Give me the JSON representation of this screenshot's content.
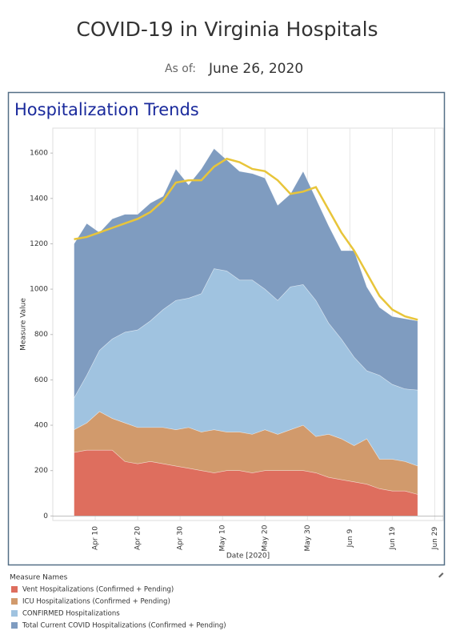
{
  "chart_data": {
    "type": "area",
    "title": "COVID-19 in Virginia Hospitals",
    "as_of_label": "As of:",
    "as_of_date": "June 26, 2020",
    "subtitle": "Hospitalization Trends",
    "ylabel": "Measure Value",
    "xlabel": "Date [2020]",
    "legend_title": "Measure Names",
    "x": [
      "2020-04-05",
      "2020-04-08",
      "2020-04-11",
      "2020-04-14",
      "2020-04-17",
      "2020-04-20",
      "2020-04-23",
      "2020-04-26",
      "2020-04-29",
      "2020-05-02",
      "2020-05-05",
      "2020-05-08",
      "2020-05-11",
      "2020-05-14",
      "2020-05-17",
      "2020-05-20",
      "2020-05-23",
      "2020-05-26",
      "2020-05-29",
      "2020-06-01",
      "2020-06-04",
      "2020-06-07",
      "2020-06-10",
      "2020-06-13",
      "2020-06-16",
      "2020-06-19",
      "2020-06-22",
      "2020-06-25"
    ],
    "series": [
      {
        "name": "Total Current COVID Hospitalizations (Confirmed + Pending)",
        "color": "#7f9cc0",
        "style": "area",
        "values": [
          1200,
          1290,
          1250,
          1310,
          1330,
          1330,
          1380,
          1410,
          1530,
          1460,
          1530,
          1620,
          1570,
          1520,
          1510,
          1490,
          1370,
          1420,
          1520,
          1400,
          1280,
          1170,
          1170,
          1010,
          920,
          880,
          870,
          860
        ]
      },
      {
        "name": "CONFIRMED Hospitalizations",
        "color": "#a0c3e0",
        "style": "area",
        "values": [
          520,
          620,
          730,
          780,
          810,
          820,
          860,
          910,
          950,
          960,
          980,
          1090,
          1080,
          1040,
          1040,
          1000,
          950,
          1010,
          1020,
          950,
          850,
          780,
          700,
          640,
          620,
          580,
          560,
          555
        ]
      },
      {
        "name": "ICU Hospitalizations (Confirmed + Pending)",
        "color": "#d19a6c",
        "style": "area",
        "values": [
          380,
          410,
          460,
          430,
          410,
          390,
          390,
          390,
          380,
          390,
          370,
          380,
          370,
          370,
          360,
          380,
          360,
          380,
          400,
          350,
          360,
          340,
          310,
          340,
          250,
          250,
          240,
          220
        ]
      },
      {
        "name": "Vent Hospitalizations (Confirmed + Pending)",
        "color": "#de6e5e",
        "style": "area",
        "values": [
          280,
          290,
          290,
          290,
          240,
          230,
          240,
          230,
          220,
          210,
          200,
          190,
          200,
          200,
          190,
          200,
          200,
          200,
          200,
          190,
          170,
          160,
          150,
          140,
          120,
          110,
          110,
          95
        ]
      },
      {
        "color": "#e8c53a",
        "style": "line",
        "values": [
          1220,
          1230,
          1250,
          1270,
          1290,
          1310,
          1340,
          1390,
          1470,
          1480,
          1480,
          1540,
          1575,
          1560,
          1530,
          1520,
          1480,
          1420,
          1430,
          1450,
          1350,
          1250,
          1170,
          1070,
          970,
          910,
          880,
          865
        ]
      }
    ],
    "legend_order": [
      3,
      2,
      1,
      0
    ],
    "xlim": [
      "2020-03-31",
      "2020-07-01"
    ],
    "xticks": [
      {
        "value": "2020-04-10",
        "label": "Apr 10"
      },
      {
        "value": "2020-04-20",
        "label": "Apr 20"
      },
      {
        "value": "2020-04-30",
        "label": "Apr 30"
      },
      {
        "value": "2020-05-10",
        "label": "May 10"
      },
      {
        "value": "2020-05-20",
        "label": "May 20"
      },
      {
        "value": "2020-05-30",
        "label": "May 30"
      },
      {
        "value": "2020-06-09",
        "label": "Jun 9"
      },
      {
        "value": "2020-06-19",
        "label": "Jun 19"
      },
      {
        "value": "2020-06-29",
        "label": "Jun 29"
      }
    ],
    "ylim": [
      -20,
      1710
    ],
    "yticks": [
      0,
      200,
      400,
      600,
      800,
      1000,
      1200,
      1400,
      1600
    ],
    "grid": "x"
  }
}
